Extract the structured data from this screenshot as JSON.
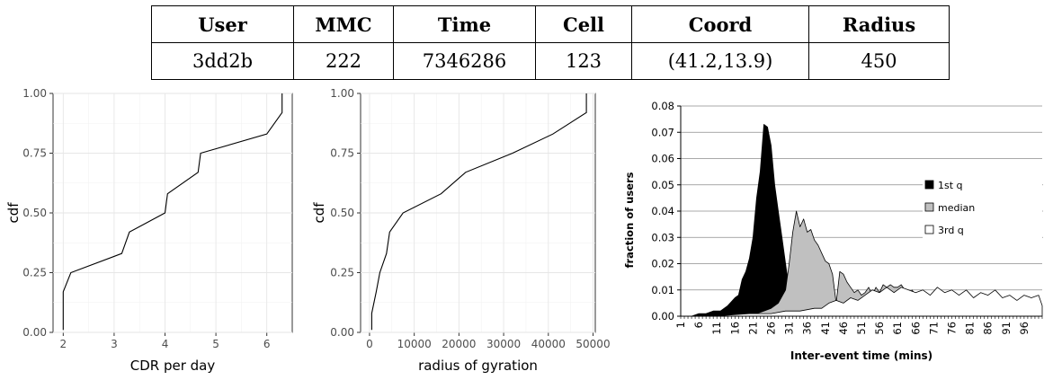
{
  "table": {
    "headers": [
      "User",
      "MMC",
      "Time",
      "Cell",
      "Coord",
      "Radius"
    ],
    "row": [
      "3dd2b",
      "222",
      "7346286",
      "123",
      "(41.2,13.9)",
      "450"
    ]
  },
  "chart_data": [
    {
      "type": "line",
      "xlabel": "CDR per day",
      "ylabel": "cdf",
      "xlim": [
        1.8,
        6.5
      ],
      "ylim": [
        0,
        1
      ],
      "xticks": [
        2,
        3,
        4,
        5,
        6
      ],
      "yticks": [
        "0.00",
        "0.25",
        "0.50",
        "0.75",
        "1.00"
      ],
      "grid": true,
      "x": [
        2.0,
        2.0,
        2.15,
        3.15,
        3.3,
        4.0,
        4.05,
        4.65,
        4.7,
        6.0,
        6.3,
        6.3
      ],
      "y": [
        0.01,
        0.17,
        0.25,
        0.33,
        0.42,
        0.5,
        0.58,
        0.67,
        0.75,
        0.83,
        0.92,
        1.0
      ]
    },
    {
      "type": "line",
      "xlabel": "radius of gyration",
      "ylabel": "cdf",
      "xlim": [
        -2000,
        50500
      ],
      "ylim": [
        0,
        1
      ],
      "xticks": [
        0,
        10000,
        20000,
        30000,
        40000,
        50000
      ],
      "yticks": [
        "0.00",
        "0.25",
        "0.50",
        "0.75",
        "1.00"
      ],
      "grid": true,
      "x": [
        500,
        500,
        1500,
        2300,
        3800,
        4500,
        7500,
        16000,
        21500,
        32000,
        41000,
        48500,
        48500
      ],
      "y": [
        0.01,
        0.08,
        0.17,
        0.25,
        0.33,
        0.42,
        0.5,
        0.58,
        0.67,
        0.75,
        0.83,
        0.92,
        1.0
      ]
    },
    {
      "type": "area",
      "xlabel": "Inter-event time (mins)",
      "ylabel": "fraction of users",
      "ylim": [
        0,
        0.08
      ],
      "yticks": [
        "0.00",
        "0.01",
        "0.02",
        "0.03",
        "0.04",
        "0.05",
        "0.06",
        "0.07",
        "0.08"
      ],
      "xticks": [
        "1",
        "6",
        "11",
        "16",
        "21",
        "26",
        "31",
        "36",
        "41",
        "46",
        "51",
        "56",
        "61",
        "66",
        "71",
        "76",
        "81",
        "86",
        "91",
        "96"
      ],
      "legend_position": "right",
      "series": [
        {
          "name": "1st q",
          "fill": "#000000",
          "x": [
            1,
            4,
            6,
            8,
            10,
            12,
            14,
            16,
            17,
            18,
            19,
            20,
            21,
            22,
            23,
            24,
            25,
            26,
            27,
            28,
            29,
            30,
            31,
            32,
            33
          ],
          "values": [
            0,
            0,
            0.001,
            0.001,
            0.002,
            0.002,
            0.004,
            0.007,
            0.008,
            0.014,
            0.017,
            0.022,
            0.03,
            0.045,
            0.055,
            0.073,
            0.072,
            0.065,
            0.05,
            0.04,
            0.03,
            0.02,
            0.01,
            0.003,
            0
          ]
        },
        {
          "name": "median",
          "fill": "#c0c0c0",
          "x": [
            1,
            20,
            22,
            24,
            26,
            28,
            30,
            31,
            32,
            33,
            34,
            35,
            36,
            37,
            38,
            39,
            40,
            41,
            42,
            43,
            44,
            45,
            46,
            47,
            48,
            49,
            50,
            51,
            52,
            53,
            54,
            55,
            56,
            57,
            58,
            59,
            60,
            61,
            62,
            63,
            64,
            65,
            66,
            67
          ],
          "values": [
            0,
            0,
            0.001,
            0.002,
            0.003,
            0.005,
            0.01,
            0.02,
            0.032,
            0.04,
            0.034,
            0.037,
            0.032,
            0.033,
            0.029,
            0.027,
            0.024,
            0.021,
            0.02,
            0.016,
            0.005,
            0.017,
            0.016,
            0.013,
            0.011,
            0.009,
            0.01,
            0.008,
            0.009,
            0.011,
            0.008,
            0.011,
            0.009,
            0.012,
            0.011,
            0.012,
            0.011,
            0.011,
            0.012,
            0.01,
            0.008,
            0.01,
            0.008,
            0
          ]
        },
        {
          "name": "3rd q",
          "fill": "#ffffff",
          "x": [
            1,
            10,
            20,
            26,
            30,
            34,
            38,
            40,
            42,
            44,
            46,
            48,
            50,
            52,
            54,
            56,
            58,
            60,
            62,
            64,
            66,
            68,
            70,
            72,
            74,
            76,
            78,
            80,
            82,
            84,
            86,
            88,
            90,
            92,
            94,
            96,
            98,
            100,
            101
          ],
          "values": [
            0,
            0,
            0.001,
            0.001,
            0.002,
            0.002,
            0.003,
            0.003,
            0.005,
            0.006,
            0.005,
            0.007,
            0.006,
            0.008,
            0.01,
            0.009,
            0.011,
            0.009,
            0.011,
            0.01,
            0.009,
            0.01,
            0.008,
            0.011,
            0.009,
            0.01,
            0.008,
            0.01,
            0.007,
            0.009,
            0.008,
            0.01,
            0.007,
            0.008,
            0.006,
            0.008,
            0.007,
            0.008,
            0.004
          ]
        }
      ]
    }
  ]
}
